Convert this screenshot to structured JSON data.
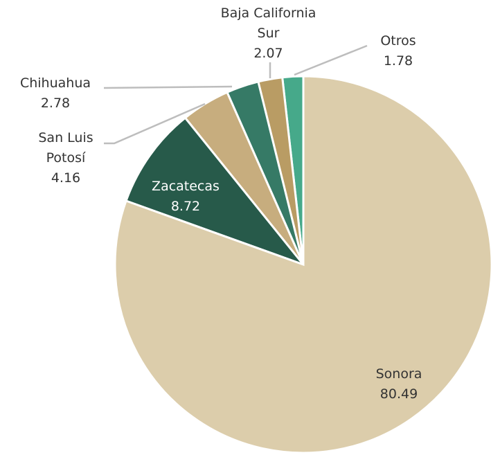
{
  "chart_data": {
    "type": "pie",
    "categories": [
      "Sonora",
      "Zacatecas",
      "San Luis Potosí",
      "Chihuahua",
      "Baja California Sur",
      "Otros"
    ],
    "values": [
      80.49,
      8.72,
      4.16,
      2.78,
      2.07,
      1.78
    ],
    "colors": [
      "#dccdab",
      "#275a4a",
      "#c7ad7e",
      "#367a66",
      "#b99c64",
      "#46a98a"
    ]
  }
}
